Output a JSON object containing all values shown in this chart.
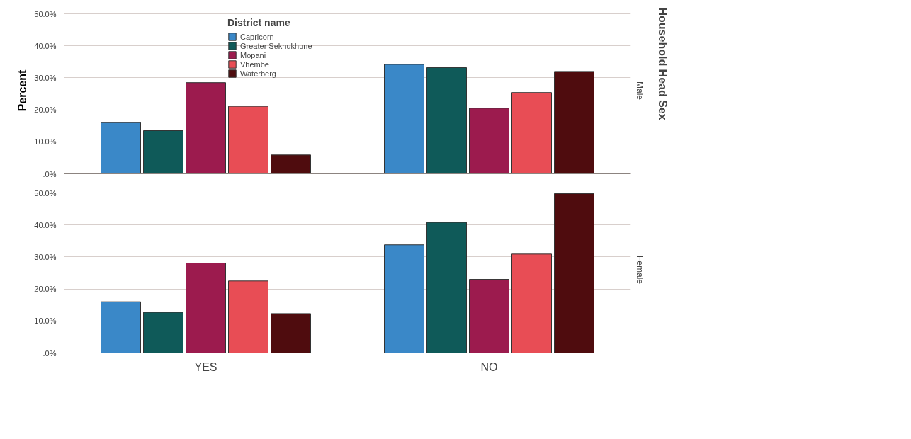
{
  "chart_data": [
    {
      "type": "bar",
      "subtitle": "Male",
      "ylabel": "Percent",
      "legend_title": "District name",
      "annotations": [
        "Household Head Sex"
      ],
      "categories": [
        null,
        null
      ],
      "grid": "y",
      "legend": "top",
      "ylim": [
        0,
        52
      ],
      "yticks": [
        {
          "value": 0,
          "label": ".0%"
        },
        {
          "value": 10,
          "label": "10.0%"
        },
        {
          "value": 20,
          "label": "20.0%"
        },
        {
          "value": 30,
          "label": "30.0%"
        },
        {
          "value": 40,
          "label": "40.0%"
        },
        {
          "value": 50,
          "label": "50.0%"
        }
      ],
      "series": [
        {
          "name": "Capricorn",
          "color": "#3a88c8",
          "values": [
            16.0,
            34.2
          ]
        },
        {
          "name": "Greater Sekhukhune",
          "color": "#0f5a59",
          "values": [
            13.5,
            33.2
          ]
        },
        {
          "name": "Mopani",
          "color": "#9c1b4e",
          "values": [
            28.5,
            20.5
          ]
        },
        {
          "name": "Vhembe",
          "color": "#e84d55",
          "values": [
            21.1,
            25.4
          ]
        },
        {
          "name": "Waterberg",
          "color": "#4f0c0e",
          "values": [
            5.9,
            32.0
          ]
        }
      ]
    },
    {
      "type": "bar",
      "subtitle": "Female",
      "categories": [
        "YES",
        "NO"
      ],
      "grid": "y",
      "ylim": [
        0,
        52
      ],
      "yticks": [
        {
          "value": 0,
          "label": ".0%"
        },
        {
          "value": 10,
          "label": "10.0%"
        },
        {
          "value": 20,
          "label": "20.0%"
        },
        {
          "value": 30,
          "label": "30.0%"
        },
        {
          "value": 40,
          "label": "40.0%"
        },
        {
          "value": 50,
          "label": "50.0%"
        }
      ],
      "series": [
        {
          "color": "#3a88c8",
          "values": [
            16.0,
            33.8
          ]
        },
        {
          "color": "#0f5a59",
          "values": [
            12.7,
            40.8
          ]
        },
        {
          "color": "#9c1b4e",
          "values": [
            28.1,
            23.0
          ]
        },
        {
          "color": "#e84d55",
          "values": [
            22.5,
            30.9
          ]
        },
        {
          "color": "#4f0c0e",
          "values": [
            12.3,
            49.8
          ]
        }
      ]
    }
  ]
}
